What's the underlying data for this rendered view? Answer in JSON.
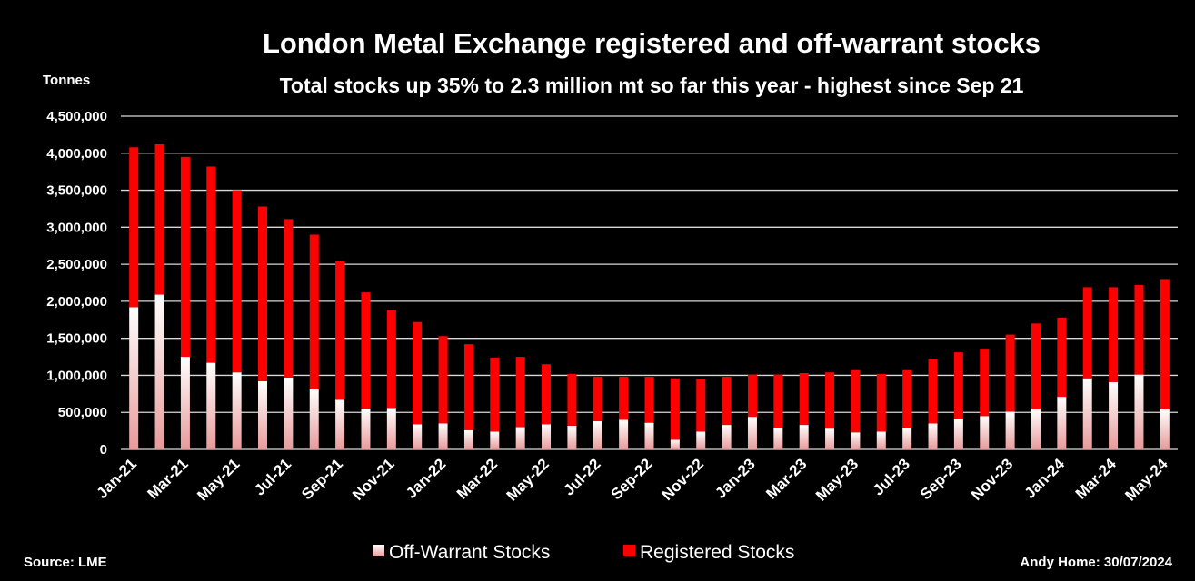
{
  "chart_data": {
    "type": "bar",
    "stacked": true,
    "title": "London Metal Exchange registered and off-warrant stocks",
    "subtitle": "Total stocks up 35% to 2.3 million mt so far this year - highest since Sep 21",
    "ylabel": "Tonnes",
    "xlabel": "",
    "ylim": [
      0,
      4500000
    ],
    "yticks": [
      0,
      500000,
      1000000,
      1500000,
      2000000,
      2500000,
      3000000,
      3500000,
      4000000,
      4500000
    ],
    "ytick_labels": [
      "0",
      "500,000",
      "1,000,000",
      "1,500,000",
      "2,000,000",
      "2,500,000",
      "3,000,000",
      "3,500,000",
      "4,000,000",
      "4,500,000"
    ],
    "grid": true,
    "legend": "bottom",
    "categories": [
      "Jan-21",
      "Feb-21",
      "Mar-21",
      "Apr-21",
      "May-21",
      "Jun-21",
      "Jul-21",
      "Aug-21",
      "Sep-21",
      "Oct-21",
      "Nov-21",
      "Dec-21",
      "Jan-22",
      "Feb-22",
      "Mar-22",
      "Apr-22",
      "May-22",
      "Jun-22",
      "Jul-22",
      "Aug-22",
      "Sep-22",
      "Oct-22",
      "Nov-22",
      "Dec-22",
      "Jan-23",
      "Feb-23",
      "Mar-23",
      "Apr-23",
      "May-23",
      "Jun-23",
      "Jul-23",
      "Aug-23",
      "Sep-23",
      "Oct-23",
      "Nov-23",
      "Dec-23",
      "Jan-24",
      "Feb-24",
      "Mar-24",
      "Apr-24",
      "May-24"
    ],
    "xtick_labels": [
      "Jan-21",
      "Mar-21",
      "May-21",
      "Jul-21",
      "Sep-21",
      "Nov-21",
      "Jan-22",
      "Mar-22",
      "May-22",
      "Jul-22",
      "Sep-22",
      "Nov-22",
      "Jan-23",
      "Mar-23",
      "May-23",
      "Jul-23",
      "Sep-23",
      "Nov-23",
      "Jan-24",
      "Mar-24",
      "May-24"
    ],
    "series": [
      {
        "name": "Off-Warrant Stocks",
        "color": "#f2b8b8",
        "values": [
          1920000,
          2090000,
          1250000,
          1170000,
          1040000,
          920000,
          970000,
          810000,
          670000,
          550000,
          560000,
          340000,
          350000,
          260000,
          240000,
          300000,
          340000,
          320000,
          380000,
          400000,
          360000,
          130000,
          240000,
          330000,
          440000,
          290000,
          330000,
          280000,
          230000,
          240000,
          290000,
          350000,
          410000,
          450000,
          510000,
          540000,
          710000,
          960000,
          910000,
          1010000,
          540000
        ]
      },
      {
        "name": "Registered Stocks",
        "color": "#ff0000",
        "values": [
          2160000,
          2030000,
          2700000,
          2650000,
          2460000,
          2360000,
          2140000,
          2090000,
          1870000,
          1570000,
          1320000,
          1380000,
          1180000,
          1160000,
          1000000,
          950000,
          810000,
          700000,
          600000,
          580000,
          620000,
          830000,
          710000,
          650000,
          570000,
          720000,
          700000,
          760000,
          840000,
          780000,
          780000,
          870000,
          900000,
          910000,
          1040000,
          1160000,
          1070000,
          1230000,
          1280000,
          1210000,
          1760000
        ]
      }
    ]
  },
  "footer": {
    "source": "Source: LME",
    "credit": "Andy Home: 30/07/2024"
  }
}
